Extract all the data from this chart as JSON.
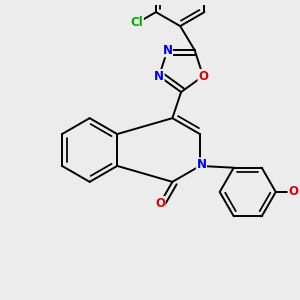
{
  "bg": "#ececec",
  "bond_color": "#000000",
  "bond_lw": 1.4,
  "atom_colors": {
    "N": "#0000ee",
    "O": "#dd0000",
    "Cl": "#00aa00"
  },
  "fs": 8.5
}
